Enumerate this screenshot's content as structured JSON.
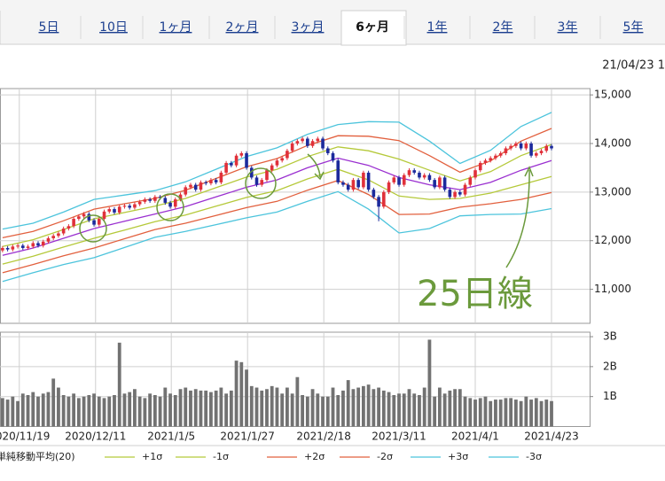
{
  "tabs": [
    "5日",
    "10日",
    "1ヶ月",
    "2ヶ月",
    "3ヶ月",
    "6ヶ月",
    "1年",
    "2年",
    "3年",
    "5年"
  ],
  "active_tab": 5,
  "timestamp": "21/04/23 1",
  "annotation": "25日線",
  "chart_data": [
    {
      "type": "candlestick",
      "up_color": "#e0303a",
      "down_color": "#1c2a9c",
      "xlim": [
        -0.5,
        115.5
      ],
      "ylim": [
        10300,
        15130
      ],
      "yticks": [
        {
          "value": 11000,
          "label": "11,000"
        },
        {
          "value": 12000,
          "label": "12,000"
        },
        {
          "value": 13000,
          "label": "13,000"
        },
        {
          "value": 14000,
          "label": "14,000"
        },
        {
          "value": 15000,
          "label": "15,000"
        }
      ],
      "grid": true,
      "ohlc": [
        [
          11800,
          11890,
          11760,
          11850
        ],
        [
          11850,
          11890,
          11780,
          11820
        ],
        [
          11820,
          11920,
          11780,
          11880
        ],
        [
          11880,
          11940,
          11840,
          11900
        ],
        [
          11900,
          11940,
          11810,
          11850
        ],
        [
          11850,
          11920,
          11810,
          11880
        ],
        [
          11880,
          11990,
          11840,
          11950
        ],
        [
          11950,
          11990,
          11860,
          11900
        ],
        [
          11900,
          12020,
          11860,
          11980
        ],
        [
          11980,
          12090,
          11940,
          12050
        ],
        [
          12050,
          12140,
          12010,
          12100
        ],
        [
          12100,
          12190,
          12060,
          12150
        ],
        [
          12150,
          12290,
          12110,
          12250
        ],
        [
          12250,
          12340,
          12210,
          12300
        ],
        [
          12300,
          12490,
          12260,
          12450
        ],
        [
          12450,
          12540,
          12410,
          12500
        ],
        [
          12500,
          12590,
          12460,
          12550
        ],
        [
          12550,
          12590,
          12380,
          12420
        ],
        [
          12420,
          12460,
          12290,
          12330
        ],
        [
          12330,
          12490,
          12290,
          12450
        ],
        [
          12450,
          12640,
          12410,
          12600
        ],
        [
          12600,
          12690,
          12560,
          12650
        ],
        [
          12650,
          12690,
          12540,
          12580
        ],
        [
          12580,
          12740,
          12540,
          12700
        ],
        [
          12700,
          12760,
          12660,
          12720
        ],
        [
          12720,
          12760,
          12640,
          12680
        ],
        [
          12680,
          12790,
          12640,
          12750
        ],
        [
          12750,
          12840,
          12710,
          12800
        ],
        [
          12800,
          12890,
          12760,
          12850
        ],
        [
          12850,
          12890,
          12780,
          12820
        ],
        [
          12820,
          12940,
          12780,
          12900
        ],
        [
          12900,
          12940,
          12840,
          12880
        ],
        [
          12880,
          12920,
          12740,
          12780
        ],
        [
          12780,
          12820,
          12660,
          12700
        ],
        [
          12700,
          12890,
          12660,
          12850
        ],
        [
          12850,
          12990,
          12810,
          12950
        ],
        [
          12950,
          13140,
          12910,
          13100
        ],
        [
          13100,
          13190,
          13060,
          13150
        ],
        [
          13150,
          13190,
          13010,
          13050
        ],
        [
          13050,
          13240,
          13010,
          13200
        ],
        [
          13200,
          13240,
          13140,
          13180
        ],
        [
          13180,
          13290,
          13140,
          13250
        ],
        [
          13250,
          13290,
          13160,
          13200
        ],
        [
          13200,
          13440,
          13160,
          13400
        ],
        [
          13400,
          13640,
          13360,
          13600
        ],
        [
          13600,
          13640,
          13510,
          13550
        ],
        [
          13550,
          13790,
          13510,
          13750
        ],
        [
          13750,
          13840,
          13710,
          13800
        ],
        [
          13800,
          13840,
          13460,
          13500
        ],
        [
          13500,
          13540,
          13260,
          13300
        ],
        [
          13300,
          13340,
          13110,
          13150
        ],
        [
          13150,
          13290,
          13110,
          13250
        ],
        [
          13250,
          13490,
          13210,
          13450
        ],
        [
          13450,
          13590,
          13410,
          13550
        ],
        [
          13550,
          13690,
          13510,
          13650
        ],
        [
          13650,
          13740,
          13610,
          13700
        ],
        [
          13700,
          13890,
          13660,
          13850
        ],
        [
          13850,
          14040,
          13810,
          14000
        ],
        [
          14000,
          14090,
          13960,
          14050
        ],
        [
          14050,
          14140,
          14010,
          14100
        ],
        [
          14100,
          14140,
          13910,
          13950
        ],
        [
          13950,
          14090,
          13910,
          14050
        ],
        [
          14050,
          14140,
          14010,
          14100
        ],
        [
          14100,
          14140,
          13860,
          13900
        ],
        [
          13900,
          13940,
          13760,
          13800
        ],
        [
          13800,
          13840,
          13610,
          13650
        ],
        [
          13650,
          13690,
          13160,
          13200
        ],
        [
          13200,
          13240,
          13110,
          13150
        ],
        [
          13150,
          13190,
          13010,
          13050
        ],
        [
          13050,
          13290,
          13010,
          13250
        ],
        [
          13250,
          13290,
          13060,
          13100
        ],
        [
          13100,
          13440,
          13060,
          13400
        ],
        [
          13400,
          13440,
          13010,
          13050
        ],
        [
          13050,
          13090,
          12860,
          12900
        ],
        [
          12900,
          12940,
          12400,
          12700
        ],
        [
          12700,
          13040,
          12660,
          13000
        ],
        [
          13000,
          13240,
          12960,
          13200
        ],
        [
          13200,
          13340,
          13160,
          13300
        ],
        [
          13300,
          13340,
          13110,
          13150
        ],
        [
          13150,
          13390,
          13110,
          13350
        ],
        [
          13350,
          13490,
          13310,
          13450
        ],
        [
          13450,
          13490,
          13360,
          13400
        ],
        [
          13400,
          13440,
          13260,
          13300
        ],
        [
          13300,
          13390,
          13260,
          13350
        ],
        [
          13350,
          13390,
          13210,
          13250
        ],
        [
          13250,
          13290,
          13060,
          13100
        ],
        [
          13100,
          13340,
          13060,
          13300
        ],
        [
          13300,
          13340,
          13010,
          13050
        ],
        [
          13050,
          13090,
          12860,
          12900
        ],
        [
          12900,
          13040,
          12860,
          13000
        ],
        [
          13000,
          13040,
          12910,
          12950
        ],
        [
          12950,
          13190,
          12910,
          13150
        ],
        [
          13150,
          13340,
          13110,
          13300
        ],
        [
          13300,
          13490,
          13260,
          13450
        ],
        [
          13450,
          13640,
          13410,
          13600
        ],
        [
          13600,
          13690,
          13560,
          13650
        ],
        [
          13650,
          13740,
          13610,
          13700
        ],
        [
          13700,
          13790,
          13660,
          13750
        ],
        [
          13750,
          13840,
          13710,
          13800
        ],
        [
          13800,
          13940,
          13760,
          13900
        ],
        [
          13900,
          13990,
          13860,
          13950
        ],
        [
          13950,
          14040,
          13910,
          14000
        ],
        [
          14000,
          14040,
          13860,
          13900
        ],
        [
          13900,
          14040,
          13860,
          14000
        ],
        [
          14000,
          14040,
          13710,
          13750
        ],
        [
          13750,
          13840,
          13710,
          13800
        ],
        [
          13800,
          13890,
          13760,
          13850
        ],
        [
          13850,
          13990,
          13810,
          13950
        ],
        [
          13950,
          13990,
          13860,
          13900
        ]
      ],
      "lines": [
        {
          "name": "単純移動平均(20)",
          "color": "#9a2fd0",
          "x": [
            0,
            6,
            12,
            18,
            24,
            30,
            36,
            42,
            48,
            54,
            60,
            66,
            72,
            78,
            84,
            90,
            96,
            102,
            108
          ],
          "values": [
            11700,
            11850,
            12050,
            12250,
            12400,
            12550,
            12700,
            12900,
            13100,
            13250,
            13500,
            13700,
            13550,
            13300,
            13150,
            13050,
            13200,
            13450,
            13650
          ]
        },
        {
          "name": "+1σ",
          "color": "#b5c93a",
          "x": [
            0,
            6,
            12,
            18,
            24,
            30,
            36,
            42,
            48,
            54,
            60,
            66,
            72,
            78,
            84,
            90,
            96,
            102,
            108
          ],
          "values": [
            11880,
            12020,
            12230,
            12450,
            12580,
            12710,
            12870,
            13090,
            13310,
            13470,
            13730,
            13930,
            13850,
            13680,
            13450,
            13230,
            13420,
            13750,
            13980
          ]
        },
        {
          "name": "-1σ",
          "color": "#b5c93a",
          "x": [
            0,
            6,
            12,
            18,
            24,
            30,
            36,
            42,
            48,
            54,
            60,
            66,
            72,
            78,
            84,
            90,
            96,
            102,
            108
          ],
          "values": [
            11520,
            11680,
            11870,
            12050,
            12220,
            12390,
            12530,
            12710,
            12890,
            13030,
            13270,
            13470,
            13250,
            12920,
            12850,
            12870,
            12980,
            13150,
            13320
          ]
        },
        {
          "name": "+2σ",
          "color": "#e2603e",
          "x": [
            0,
            6,
            12,
            18,
            24,
            30,
            36,
            42,
            48,
            54,
            60,
            66,
            72,
            78,
            84,
            90,
            96,
            102,
            108
          ],
          "values": [
            12060,
            12190,
            12410,
            12650,
            12760,
            12870,
            13040,
            13280,
            13520,
            13690,
            13960,
            14160,
            14150,
            14060,
            13750,
            13410,
            13640,
            14050,
            14310
          ]
        },
        {
          "name": "-2σ",
          "color": "#e2603e",
          "x": [
            0,
            6,
            12,
            18,
            24,
            30,
            36,
            42,
            48,
            54,
            60,
            66,
            72,
            78,
            84,
            90,
            96,
            102,
            108
          ],
          "values": [
            11340,
            11510,
            11690,
            11850,
            12040,
            12230,
            12360,
            12520,
            12680,
            12810,
            13040,
            13240,
            12950,
            12540,
            12550,
            12690,
            12760,
            12850,
            12990
          ]
        },
        {
          "name": "+3σ",
          "color": "#4cc4dc",
          "x": [
            0,
            6,
            12,
            18,
            24,
            30,
            36,
            42,
            48,
            54,
            60,
            66,
            72,
            78,
            84,
            90,
            96,
            102,
            108
          ],
          "values": [
            12240,
            12360,
            12590,
            12850,
            12940,
            13030,
            13210,
            13470,
            13730,
            13910,
            14190,
            14390,
            14450,
            14440,
            14050,
            13590,
            13860,
            14350,
            14640
          ]
        },
        {
          "name": "-3σ",
          "color": "#4cc4dc",
          "x": [
            0,
            6,
            12,
            18,
            24,
            30,
            36,
            42,
            48,
            54,
            60,
            66,
            72,
            78,
            84,
            90,
            96,
            102,
            108
          ],
          "values": [
            11160,
            11340,
            11510,
            11650,
            11860,
            12070,
            12190,
            12330,
            12470,
            12590,
            12810,
            13010,
            12650,
            12160,
            12250,
            12510,
            12540,
            12550,
            12660
          ]
        }
      ]
    },
    {
      "type": "bar",
      "color": "#727272",
      "xlim": [
        -0.5,
        115.5
      ],
      "ylim": [
        0,
        3.15
      ],
      "yticks": [
        {
          "value": 1,
          "label": "1B"
        },
        {
          "value": 2,
          "label": "2B"
        },
        {
          "value": 3,
          "label": "3B"
        }
      ],
      "xticks": [
        {
          "value": 3.3,
          "label": "2020/11/19"
        },
        {
          "value": 18.3,
          "label": "2020/12/11"
        },
        {
          "value": 33.2,
          "label": "2021/1/5"
        },
        {
          "value": 48.2,
          "label": "2021/1/27"
        },
        {
          "value": 63.2,
          "label": "2021/2/18"
        },
        {
          "value": 78,
          "label": "2021/3/11"
        },
        {
          "value": 93,
          "label": "2021/4/1"
        },
        {
          "value": 108,
          "label": "2021/4/23"
        }
      ],
      "grid": true,
      "values": [
        0.95,
        0.9,
        1.0,
        0.85,
        1.1,
        1.05,
        1.15,
        1.0,
        1.1,
        1.15,
        1.6,
        1.3,
        1.05,
        1.0,
        1.1,
        0.95,
        1.0,
        1.05,
        1.1,
        1.0,
        0.95,
        1.0,
        1.05,
        2.8,
        1.1,
        1.15,
        1.25,
        1.0,
        0.95,
        1.1,
        1.05,
        1.0,
        1.3,
        1.1,
        1.05,
        1.25,
        1.3,
        1.2,
        1.25,
        1.2,
        1.2,
        1.15,
        1.2,
        1.3,
        1.1,
        1.2,
        2.2,
        2.15,
        1.9,
        1.35,
        1.3,
        1.2,
        1.25,
        1.35,
        1.3,
        1.1,
        1.3,
        1.1,
        1.65,
        1.05,
        1.0,
        1.25,
        1.1,
        1.0,
        1.0,
        1.3,
        1.05,
        1.2,
        1.55,
        1.25,
        1.3,
        1.35,
        1.4,
        1.25,
        1.3,
        1.2,
        1.15,
        1.05,
        1.1,
        1.1,
        1.25,
        1.1,
        1.05,
        1.3,
        2.9,
        1.0,
        1.3,
        1.1,
        1.2,
        1.25,
        1.25,
        1.0,
        0.95,
        0.9,
        0.95,
        1.0,
        0.85,
        0.9,
        0.9,
        0.95,
        0.95,
        0.9,
        0.85,
        1.0,
        0.9,
        0.95,
        0.85,
        0.9,
        0.85
      ]
    }
  ]
}
